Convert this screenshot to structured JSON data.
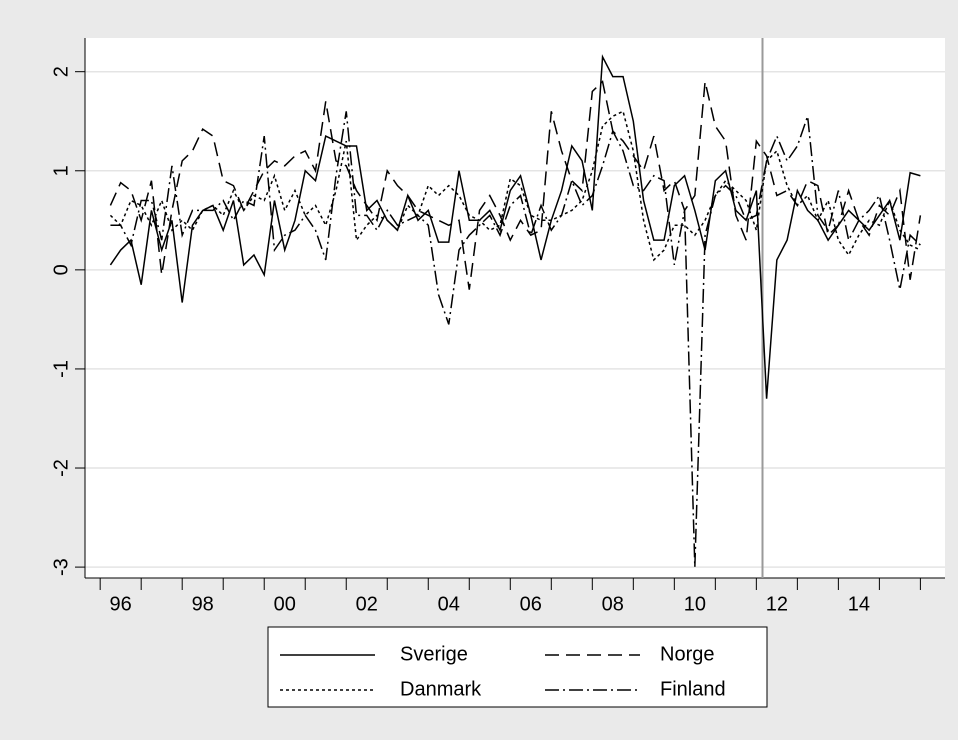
{
  "chart_data": {
    "type": "line",
    "x": [
      1996.25,
      1996.5,
      1996.75,
      1997,
      1997.25,
      1997.5,
      1997.75,
      1998,
      1998.25,
      1998.5,
      1998.75,
      1999,
      1999.25,
      1999.5,
      1999.75,
      2000,
      2000.25,
      2000.5,
      2000.75,
      2001,
      2001.25,
      2001.5,
      2001.75,
      2002,
      2002.25,
      2002.5,
      2002.75,
      2003,
      2003.25,
      2003.5,
      2003.75,
      2004,
      2004.25,
      2004.5,
      2004.75,
      2005,
      2005.25,
      2005.5,
      2005.75,
      2006,
      2006.25,
      2006.5,
      2006.75,
      2007,
      2007.25,
      2007.5,
      2007.75,
      2008,
      2008.25,
      2008.5,
      2008.75,
      2009,
      2009.25,
      2009.5,
      2009.75,
      2010,
      2010.25,
      2010.5,
      2010.75,
      2011,
      2011.25,
      2011.5,
      2011.75,
      2012,
      2012.25,
      2012.5,
      2012.75,
      2013,
      2013.25,
      2013.5,
      2013.75,
      2014,
      2014.25,
      2014.5,
      2014.75,
      2015,
      2015.25,
      2015.5,
      2015.75,
      2016
    ],
    "series": [
      {
        "name": "Sverige",
        "color": "#000000",
        "dash": "solid",
        "values": [
          0.05,
          0.2,
          0.3,
          -0.15,
          0.6,
          0.2,
          0.5,
          -0.33,
          0.45,
          0.6,
          0.65,
          0.4,
          0.7,
          0.05,
          0.15,
          -0.05,
          0.7,
          0.2,
          0.5,
          1.0,
          0.9,
          1.35,
          1.3,
          1.25,
          1.25,
          0.6,
          0.7,
          0.5,
          0.4,
          0.75,
          0.5,
          0.6,
          0.28,
          0.28,
          1.0,
          0.5,
          0.5,
          0.6,
          0.4,
          0.8,
          0.95,
          0.55,
          0.1,
          0.5,
          0.8,
          1.25,
          1.1,
          0.6,
          2.15,
          1.95,
          1.95,
          1.5,
          0.7,
          0.3,
          0.3,
          0.85,
          0.95,
          0.6,
          0.2,
          0.9,
          1.0,
          0.6,
          0.5,
          0.8,
          -1.3,
          0.1,
          0.3,
          0.8,
          0.6,
          0.5,
          0.3,
          0.45,
          0.6,
          0.5,
          0.4,
          0.55,
          0.7,
          0.3,
          0.98,
          0.95
        ]
      },
      {
        "name": "Norge",
        "color": "#000000",
        "dash": "dashed",
        "values": [
          0.65,
          0.88,
          0.8,
          0.5,
          0.9,
          -0.05,
          0.6,
          1.1,
          1.2,
          1.42,
          1.35,
          0.9,
          0.85,
          0.6,
          0.8,
          1.0,
          1.1,
          1.05,
          1.15,
          1.2,
          1.0,
          1.7,
          1.1,
          1.05,
          0.8,
          0.65,
          0.5,
          1.0,
          0.85,
          0.75,
          0.6,
          0.55,
          0.5,
          0.45,
          0.5,
          -0.2,
          0.6,
          0.75,
          0.55,
          0.3,
          0.5,
          0.35,
          0.4,
          1.6,
          1.2,
          0.9,
          0.8,
          1.8,
          1.9,
          1.4,
          1.3,
          1.15,
          1.0,
          1.35,
          0.8,
          0.9,
          0.6,
          0.75,
          1.9,
          1.45,
          1.3,
          0.55,
          0.3,
          1.3,
          1.15,
          0.75,
          0.8,
          0.65,
          0.9,
          0.85,
          0.35,
          0.45,
          0.8,
          0.5,
          0.35,
          0.65,
          0.55,
          0.8,
          -0.1,
          0.55
        ]
      },
      {
        "name": "Danmark",
        "color": "#000000",
        "dash": "dotted",
        "values": [
          0.55,
          0.45,
          0.7,
          0.65,
          0.45,
          0.7,
          0.4,
          0.5,
          0.4,
          0.6,
          0.65,
          0.55,
          0.8,
          0.6,
          0.75,
          0.7,
          0.95,
          0.6,
          0.8,
          0.55,
          0.65,
          0.45,
          0.8,
          1.3,
          0.3,
          0.45,
          0.55,
          0.5,
          0.4,
          0.65,
          0.55,
          0.85,
          0.75,
          0.85,
          0.75,
          0.55,
          0.5,
          0.4,
          0.45,
          0.92,
          0.85,
          0.55,
          0.5,
          0.5,
          0.55,
          0.6,
          0.7,
          1.0,
          1.45,
          1.55,
          1.6,
          1.2,
          0.5,
          0.1,
          0.2,
          0.45,
          0.45,
          0.35,
          0.5,
          0.75,
          0.9,
          0.8,
          0.7,
          0.4,
          1.1,
          1.2,
          0.85,
          0.65,
          0.75,
          0.5,
          0.7,
          0.3,
          0.15,
          0.35,
          0.5,
          0.45,
          0.7,
          0.4,
          0.25,
          0.2
        ]
      },
      {
        "name": "Finland",
        "color": "#000000",
        "dash": "dashdot",
        "values": [
          0.45,
          0.45,
          0.25,
          0.7,
          0.7,
          0.3,
          1.05,
          0.35,
          0.6,
          0.6,
          0.6,
          0.7,
          0.5,
          0.7,
          0.65,
          1.35,
          0.2,
          0.35,
          0.4,
          0.55,
          0.4,
          0.1,
          0.95,
          1.6,
          0.55,
          0.55,
          0.4,
          0.6,
          0.45,
          0.5,
          0.55,
          0.45,
          -0.25,
          -0.55,
          0.2,
          0.35,
          0.45,
          0.55,
          0.35,
          0.65,
          0.75,
          0.35,
          0.65,
          0.4,
          0.55,
          0.9,
          0.65,
          0.75,
          1.05,
          1.4,
          1.2,
          0.85,
          0.8,
          0.95,
          0.9,
          0.05,
          0.6,
          -3.0,
          0.35,
          0.75,
          0.85,
          0.75,
          0.5,
          0.55,
          1.1,
          1.35,
          1.1,
          1.25,
          1.55,
          0.55,
          0.4,
          0.8,
          0.3,
          0.5,
          0.6,
          0.75,
          0.3,
          -0.2,
          0.35,
          0.25
        ]
      }
    ],
    "xlim": [
      1995.63,
      2016.6
    ],
    "xticks": [
      {
        "value": 1996.5,
        "label": "96"
      },
      {
        "value": 1998.5,
        "label": "98"
      },
      {
        "value": 2000.5,
        "label": "00"
      },
      {
        "value": 2002.5,
        "label": "02"
      },
      {
        "value": 2004.5,
        "label": "04"
      },
      {
        "value": 2006.5,
        "label": "06"
      },
      {
        "value": 2008.5,
        "label": "08"
      },
      {
        "value": 2010.5,
        "label": "10"
      },
      {
        "value": 2012.5,
        "label": "12"
      },
      {
        "value": 2014.5,
        "label": "14"
      }
    ],
    "xminorticks": [
      1996,
      1997,
      1998,
      1999,
      2000,
      2001,
      2002,
      2003,
      2004,
      2005,
      2006,
      2007,
      2008,
      2009,
      2010,
      2011,
      2012,
      2013,
      2014,
      2015,
      2016
    ],
    "ylim": [
      -3.11,
      2.34
    ],
    "yticks": [
      -3,
      -2,
      -1,
      0,
      1,
      2
    ],
    "grid": true,
    "xline": 2012.15,
    "legend": "bottom"
  }
}
